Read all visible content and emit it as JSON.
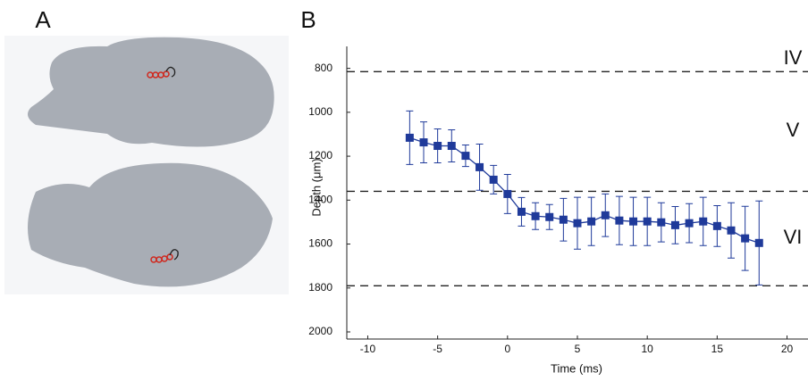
{
  "panel_labels": [
    "A",
    "B"
  ],
  "chart_data": {
    "type": "line",
    "xlabel": "Time (ms)",
    "ylabel": "Depth (μm)",
    "x": [
      -7,
      -6,
      -5,
      -4,
      -3,
      -2,
      -1,
      0,
      1,
      2,
      3,
      4,
      5,
      6,
      7,
      8,
      9,
      10,
      11,
      12,
      13,
      14,
      15,
      16,
      17,
      18
    ],
    "series": [
      {
        "color": "#1f3a9a",
        "values": [
          1116,
          1137,
          1153,
          1153,
          1198,
          1250,
          1307,
          1372,
          1453,
          1473,
          1477,
          1489,
          1505,
          1497,
          1469,
          1493,
          1497,
          1497,
          1501,
          1514,
          1505,
          1497,
          1518,
          1538,
          1574,
          1595
        ],
        "errors": [
          122,
          93,
          77,
          73,
          49,
          105,
          65,
          89,
          65,
          61,
          57,
          97,
          118,
          110,
          97,
          110,
          110,
          110,
          89,
          85,
          89,
          110,
          93,
          126,
          146,
          191
        ]
      }
    ],
    "xlim": [
      -11.5,
      21.5
    ],
    "xticks": [
      -10,
      -5,
      0,
      5,
      10,
      15,
      20
    ],
    "ylim": [
      700,
      2000
    ],
    "yticks": [
      800,
      1000,
      1200,
      1400,
      1600,
      1800,
      2000
    ],
    "y_inverted": true,
    "layer_boundaries": [
      815,
      1360,
      1790
    ],
    "layer_labels": [
      "IV",
      "V",
      "VI"
    ]
  }
}
